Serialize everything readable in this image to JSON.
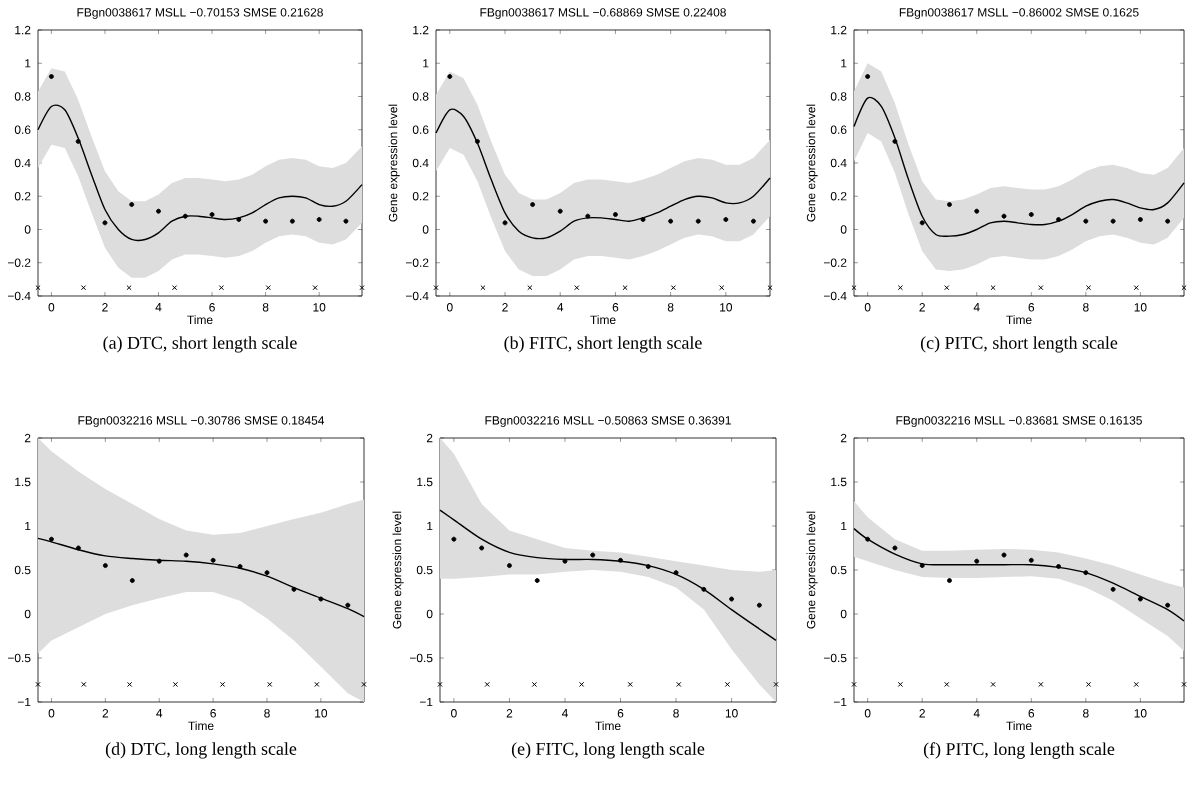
{
  "chart_data": [
    {
      "type": "line",
      "title": "FBgn0038617 MSLL −0.70153 SMSE 0.21628",
      "xlabel": "Time",
      "xlim": [
        -0.5,
        11.6
      ],
      "ylim": [
        -0.4,
        1.2
      ],
      "xticks": [
        0,
        2,
        4,
        6,
        8,
        10
      ],
      "yticks": [
        {
          "value": -0.4,
          "label": "−0.4"
        },
        {
          "value": -0.2,
          "label": "−0.2"
        },
        0,
        0.2,
        0.4,
        0.6,
        0.8,
        1,
        1.2
      ],
      "annotations": [
        "(a)  DTC, short length scale"
      ],
      "series": [
        {
          "color": "#000000",
          "x": [
            -0.5,
            0,
            0.5,
            1,
            1.5,
            2,
            2.5,
            3,
            3.5,
            4,
            4.5,
            5,
            5.5,
            6,
            6.5,
            7,
            7.5,
            8,
            8.5,
            9,
            9.5,
            10,
            10.5,
            11,
            11.6
          ],
          "values": [
            0.6,
            0.74,
            0.72,
            0.55,
            0.33,
            0.12,
            0.0,
            -0.06,
            -0.06,
            -0.02,
            0.05,
            0.08,
            0.08,
            0.07,
            0.06,
            0.07,
            0.1,
            0.15,
            0.19,
            0.2,
            0.19,
            0.15,
            0.14,
            0.17,
            0.27
          ],
          "upper": [
            0.83,
            0.97,
            0.95,
            0.78,
            0.56,
            0.35,
            0.23,
            0.17,
            0.17,
            0.21,
            0.28,
            0.31,
            0.31,
            0.3,
            0.29,
            0.3,
            0.33,
            0.38,
            0.42,
            0.43,
            0.42,
            0.38,
            0.37,
            0.4,
            0.5
          ],
          "lower": [
            0.37,
            0.51,
            0.49,
            0.32,
            0.1,
            -0.11,
            -0.23,
            -0.29,
            -0.29,
            -0.25,
            -0.18,
            -0.15,
            -0.15,
            -0.16,
            -0.17,
            -0.16,
            -0.13,
            -0.08,
            -0.04,
            -0.03,
            -0.04,
            -0.08,
            -0.09,
            -0.06,
            0.04
          ]
        },
        {
          "type": "scatter",
          "marker": "circle",
          "color": "#000000",
          "x": [
            0,
            1,
            2,
            3,
            4,
            5,
            6,
            7,
            8,
            9,
            10,
            11
          ],
          "values": [
            0.92,
            0.53,
            0.04,
            0.15,
            0.11,
            0.08,
            0.09,
            0.06,
            0.05,
            0.05,
            0.06,
            0.05
          ]
        },
        {
          "type": "scatter",
          "marker": "cross",
          "color": "#000000",
          "x": [
            -0.5,
            1.2,
            2.9,
            4.6,
            6.35,
            8.1,
            9.85,
            11.6
          ],
          "values": [
            -0.35,
            -0.35,
            -0.35,
            -0.35,
            -0.35,
            -0.35,
            -0.35,
            -0.35
          ]
        }
      ]
    },
    {
      "type": "line",
      "title": "FBgn0038617 MSLL −0.68869 SMSE 0.22408",
      "xlabel": "Time",
      "ylabel": "Gene expression level",
      "xlim": [
        -0.5,
        11.6
      ],
      "ylim": [
        -0.4,
        1.2
      ],
      "xticks": [
        0,
        2,
        4,
        6,
        8,
        10
      ],
      "yticks": [
        {
          "value": -0.4,
          "label": "−0.4"
        },
        {
          "value": -0.2,
          "label": "−0.2"
        },
        0,
        0.2,
        0.4,
        0.6,
        0.8,
        1,
        1.2
      ],
      "annotations": [
        "(b)  FITC, short length scale"
      ],
      "series": [
        {
          "color": "#000000",
          "x": [
            -0.5,
            0,
            0.5,
            1,
            1.5,
            2,
            2.5,
            3,
            3.5,
            4,
            4.5,
            5,
            5.5,
            6,
            6.5,
            7,
            7.5,
            8,
            8.5,
            9,
            9.5,
            10,
            10.5,
            11,
            11.6
          ],
          "values": [
            0.58,
            0.72,
            0.68,
            0.52,
            0.3,
            0.1,
            -0.01,
            -0.05,
            -0.05,
            -0.01,
            0.05,
            0.07,
            0.07,
            0.06,
            0.05,
            0.07,
            0.1,
            0.14,
            0.18,
            0.2,
            0.19,
            0.16,
            0.16,
            0.2,
            0.31
          ],
          "upper": [
            0.81,
            0.95,
            0.91,
            0.75,
            0.53,
            0.33,
            0.22,
            0.18,
            0.18,
            0.22,
            0.28,
            0.3,
            0.3,
            0.29,
            0.28,
            0.3,
            0.33,
            0.37,
            0.41,
            0.43,
            0.42,
            0.39,
            0.39,
            0.43,
            0.54
          ],
          "lower": [
            0.35,
            0.49,
            0.45,
            0.29,
            0.07,
            -0.13,
            -0.24,
            -0.28,
            -0.28,
            -0.24,
            -0.18,
            -0.16,
            -0.16,
            -0.17,
            -0.18,
            -0.16,
            -0.13,
            -0.09,
            -0.05,
            -0.03,
            -0.04,
            -0.07,
            -0.07,
            -0.03,
            0.08
          ]
        },
        {
          "type": "scatter",
          "marker": "circle",
          "color": "#000000",
          "x": [
            0,
            1,
            2,
            3,
            4,
            5,
            6,
            7,
            8,
            9,
            10,
            11
          ],
          "values": [
            0.92,
            0.53,
            0.04,
            0.15,
            0.11,
            0.08,
            0.09,
            0.06,
            0.05,
            0.05,
            0.06,
            0.05
          ]
        },
        {
          "type": "scatter",
          "marker": "cross",
          "color": "#000000",
          "x": [
            -0.5,
            1.2,
            2.9,
            4.6,
            6.35,
            8.1,
            9.85,
            11.6
          ],
          "values": [
            -0.35,
            -0.35,
            -0.35,
            -0.35,
            -0.35,
            -0.35,
            -0.35,
            -0.35
          ]
        }
      ]
    },
    {
      "type": "line",
      "title": "FBgn0038617 MSLL −0.86002 SMSE 0.1625",
      "xlabel": "Time",
      "ylabel": "Gene expression level",
      "xlim": [
        -0.5,
        11.6
      ],
      "ylim": [
        -0.4,
        1.2
      ],
      "xticks": [
        0,
        2,
        4,
        6,
        8,
        10
      ],
      "yticks": [
        {
          "value": -0.4,
          "label": "−0.4"
        },
        {
          "value": -0.2,
          "label": "−0.2"
        },
        0,
        0.2,
        0.4,
        0.6,
        0.8,
        1,
        1.2
      ],
      "annotations": [
        "(c)  PITC, short length scale"
      ],
      "series": [
        {
          "color": "#000000",
          "x": [
            -0.5,
            0,
            0.5,
            1,
            1.5,
            2,
            2.5,
            3,
            3.5,
            4,
            4.5,
            5,
            5.5,
            6,
            6.5,
            7,
            7.5,
            8,
            8.5,
            9,
            9.5,
            10,
            10.5,
            11,
            11.6
          ],
          "values": [
            0.62,
            0.79,
            0.74,
            0.55,
            0.3,
            0.08,
            -0.03,
            -0.04,
            -0.03,
            0.0,
            0.04,
            0.05,
            0.04,
            0.03,
            0.03,
            0.05,
            0.09,
            0.14,
            0.17,
            0.18,
            0.16,
            0.13,
            0.12,
            0.16,
            0.28
          ],
          "upper": [
            0.83,
            1.0,
            0.95,
            0.76,
            0.51,
            0.29,
            0.18,
            0.17,
            0.18,
            0.21,
            0.25,
            0.26,
            0.25,
            0.24,
            0.24,
            0.26,
            0.3,
            0.35,
            0.38,
            0.39,
            0.37,
            0.34,
            0.33,
            0.37,
            0.49
          ],
          "lower": [
            0.41,
            0.58,
            0.53,
            0.34,
            0.09,
            -0.13,
            -0.24,
            -0.25,
            -0.24,
            -0.21,
            -0.17,
            -0.16,
            -0.17,
            -0.18,
            -0.18,
            -0.16,
            -0.12,
            -0.07,
            -0.04,
            -0.03,
            -0.05,
            -0.08,
            -0.09,
            -0.05,
            0.07
          ]
        },
        {
          "type": "scatter",
          "marker": "circle",
          "color": "#000000",
          "x": [
            0,
            1,
            2,
            3,
            4,
            5,
            6,
            7,
            8,
            9,
            10,
            11
          ],
          "values": [
            0.92,
            0.53,
            0.04,
            0.15,
            0.11,
            0.08,
            0.09,
            0.06,
            0.05,
            0.05,
            0.06,
            0.05
          ]
        },
        {
          "type": "scatter",
          "marker": "cross",
          "color": "#000000",
          "x": [
            -0.5,
            1.2,
            2.9,
            4.6,
            6.35,
            8.1,
            9.85,
            11.6
          ],
          "values": [
            -0.35,
            -0.35,
            -0.35,
            -0.35,
            -0.35,
            -0.35,
            -0.35,
            -0.35
          ]
        }
      ]
    },
    {
      "type": "line",
      "title": "FBgn0032216 MSLL −0.30786 SMSE 0.18454",
      "xlabel": "Time",
      "xlim": [
        -0.5,
        11.6
      ],
      "ylim": [
        -1,
        2
      ],
      "xticks": [
        0,
        2,
        4,
        6,
        8,
        10
      ],
      "yticks": [
        {
          "value": -1,
          "label": "−1"
        },
        {
          "value": -0.5,
          "label": "−0.5"
        },
        0,
        0.5,
        1,
        1.5,
        2
      ],
      "annotations": [
        "(d)  DTC, long length scale"
      ],
      "series": [
        {
          "color": "#000000",
          "x": [
            -0.5,
            0,
            1,
            2,
            3,
            4,
            5,
            6,
            7,
            8,
            9,
            10,
            11,
            11.6
          ],
          "values": [
            0.86,
            0.82,
            0.73,
            0.66,
            0.63,
            0.61,
            0.6,
            0.57,
            0.52,
            0.43,
            0.3,
            0.18,
            0.06,
            -0.03
          ],
          "upper": [
            2.0,
            1.85,
            1.62,
            1.42,
            1.25,
            1.08,
            0.95,
            0.9,
            0.92,
            1.0,
            1.08,
            1.15,
            1.25,
            1.3
          ],
          "lower": [
            -0.45,
            -0.3,
            -0.15,
            0.0,
            0.1,
            0.18,
            0.25,
            0.25,
            0.15,
            -0.05,
            -0.3,
            -0.6,
            -0.9,
            -1.0
          ]
        },
        {
          "type": "scatter",
          "marker": "circle",
          "color": "#000000",
          "x": [
            0,
            1,
            2,
            3,
            4,
            5,
            6,
            7,
            8,
            9,
            10,
            11
          ],
          "values": [
            0.85,
            0.75,
            0.55,
            0.38,
            0.6,
            0.67,
            0.61,
            0.54,
            0.47,
            0.28,
            0.17,
            0.1
          ]
        },
        {
          "type": "scatter",
          "marker": "cross",
          "color": "#000000",
          "x": [
            -0.5,
            1.2,
            2.9,
            4.6,
            6.35,
            8.1,
            9.85,
            11.6
          ],
          "values": [
            -0.8,
            -0.8,
            -0.8,
            -0.8,
            -0.8,
            -0.8,
            -0.8,
            -0.8
          ]
        }
      ]
    },
    {
      "type": "line",
      "title": "FBgn0032216 MSLL −0.50863 SMSE 0.36391",
      "xlabel": "Time",
      "ylabel": "Gene expression level",
      "xlim": [
        -0.5,
        11.6
      ],
      "ylim": [
        -1,
        2
      ],
      "xticks": [
        0,
        2,
        4,
        6,
        8,
        10
      ],
      "yticks": [
        {
          "value": -1,
          "label": "−1"
        },
        {
          "value": -0.5,
          "label": "−0.5"
        },
        0,
        0.5,
        1,
        1.5,
        2
      ],
      "annotations": [
        "(e)  FITC, long length scale"
      ],
      "series": [
        {
          "color": "#000000",
          "x": [
            -0.5,
            0,
            1,
            2,
            3,
            4,
            5,
            6,
            7,
            8,
            9,
            10,
            11,
            11.6
          ],
          "values": [
            1.18,
            1.07,
            0.85,
            0.7,
            0.64,
            0.62,
            0.62,
            0.6,
            0.55,
            0.45,
            0.28,
            0.05,
            -0.17,
            -0.3
          ],
          "upper": [
            2.0,
            1.82,
            1.25,
            0.95,
            0.85,
            0.75,
            0.72,
            0.7,
            0.65,
            0.6,
            0.55,
            0.5,
            0.48,
            0.5
          ],
          "lower": [
            0.4,
            0.4,
            0.42,
            0.45,
            0.45,
            0.48,
            0.5,
            0.48,
            0.42,
            0.3,
            0.05,
            -0.4,
            -0.8,
            -1.0
          ]
        },
        {
          "type": "scatter",
          "marker": "circle",
          "color": "#000000",
          "x": [
            0,
            1,
            2,
            3,
            4,
            5,
            6,
            7,
            8,
            9,
            10,
            11
          ],
          "values": [
            0.85,
            0.75,
            0.55,
            0.38,
            0.6,
            0.67,
            0.61,
            0.54,
            0.47,
            0.28,
            0.17,
            0.1
          ]
        },
        {
          "type": "scatter",
          "marker": "cross",
          "color": "#000000",
          "x": [
            -0.5,
            1.2,
            2.9,
            4.6,
            6.35,
            8.1,
            9.85,
            11.6
          ],
          "values": [
            -0.8,
            -0.8,
            -0.8,
            -0.8,
            -0.8,
            -0.8,
            -0.8,
            -0.8
          ]
        }
      ]
    },
    {
      "type": "line",
      "title": "FBgn0032216 MSLL −0.83681 SMSE 0.16135",
      "xlabel": "Time",
      "ylabel": "Gene expression level",
      "xlim": [
        -0.5,
        11.6
      ],
      "ylim": [
        -1,
        2
      ],
      "xticks": [
        0,
        2,
        4,
        6,
        8,
        10
      ],
      "yticks": [
        {
          "value": -1,
          "label": "−1"
        },
        {
          "value": -0.5,
          "label": "−0.5"
        },
        0,
        0.5,
        1,
        1.5,
        2
      ],
      "annotations": [
        "(f)  PITC, long length scale"
      ],
      "series": [
        {
          "color": "#000000",
          "x": [
            -0.5,
            0,
            1,
            2,
            3,
            4,
            5,
            6,
            7,
            8,
            9,
            10,
            11,
            11.6
          ],
          "values": [
            0.97,
            0.85,
            0.68,
            0.57,
            0.56,
            0.56,
            0.56,
            0.56,
            0.53,
            0.47,
            0.35,
            0.2,
            0.05,
            -0.08
          ],
          "upper": [
            1.28,
            1.1,
            0.85,
            0.72,
            0.72,
            0.73,
            0.74,
            0.73,
            0.7,
            0.63,
            0.55,
            0.45,
            0.35,
            0.3
          ],
          "lower": [
            0.65,
            0.6,
            0.5,
            0.42,
            0.41,
            0.41,
            0.42,
            0.43,
            0.4,
            0.3,
            0.15,
            -0.05,
            -0.25,
            -0.42
          ]
        },
        {
          "type": "scatter",
          "marker": "circle",
          "color": "#000000",
          "x": [
            0,
            1,
            2,
            3,
            4,
            5,
            6,
            7,
            8,
            9,
            10,
            11
          ],
          "values": [
            0.85,
            0.75,
            0.55,
            0.38,
            0.6,
            0.67,
            0.61,
            0.54,
            0.47,
            0.28,
            0.17,
            0.1
          ]
        },
        {
          "type": "scatter",
          "marker": "cross",
          "color": "#000000",
          "x": [
            -0.5,
            1.2,
            2.9,
            4.6,
            6.35,
            8.1,
            9.85,
            11.6
          ],
          "values": [
            -0.8,
            -0.8,
            -0.8,
            -0.8,
            -0.8,
            -0.8,
            -0.8,
            -0.8
          ]
        }
      ]
    }
  ]
}
